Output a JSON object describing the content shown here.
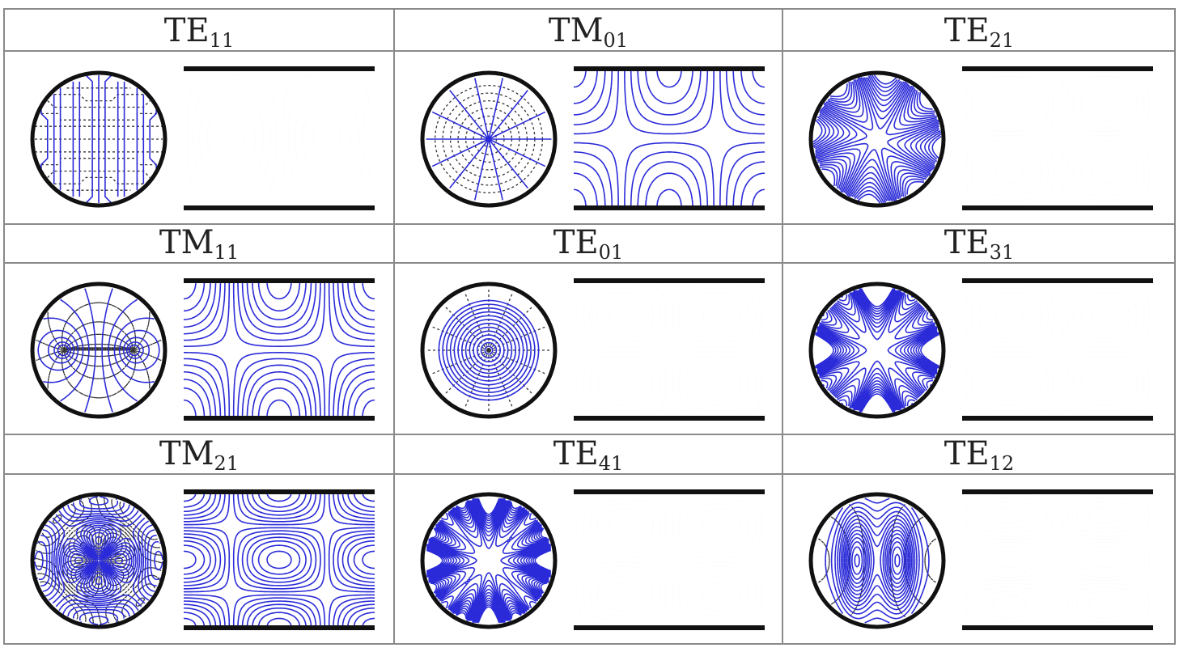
{
  "table": {
    "rows": [
      [
        {
          "mode": "TE",
          "index": "11",
          "pattern": "te11"
        },
        {
          "mode": "TM",
          "index": "01",
          "pattern": "tm01"
        },
        {
          "mode": "TE",
          "index": "21",
          "pattern": "te21"
        }
      ],
      [
        {
          "mode": "TM",
          "index": "11",
          "pattern": "tm11"
        },
        {
          "mode": "TE",
          "index": "01",
          "pattern": "te01"
        },
        {
          "mode": "TE",
          "index": "31",
          "pattern": "te31"
        }
      ],
      [
        {
          "mode": "TM",
          "index": "21",
          "pattern": "tm21"
        },
        {
          "mode": "TE",
          "index": "41",
          "pattern": "te41"
        },
        {
          "mode": "TE",
          "index": "12",
          "pattern": "te12"
        }
      ]
    ]
  },
  "colors": {
    "efield": "#2a2ad8",
    "hfield": "#333333",
    "wall": "#111111",
    "grid": "#8a8a8a"
  }
}
